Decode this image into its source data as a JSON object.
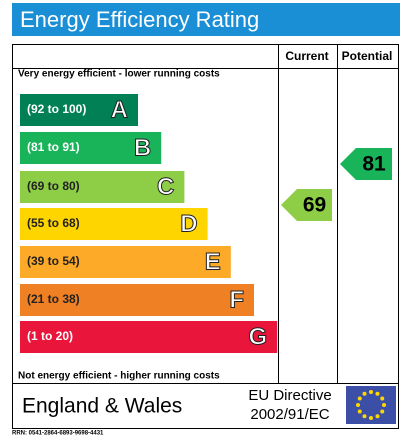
{
  "title": "Energy Efficiency Rating",
  "columns": [
    "Current",
    "Potential"
  ],
  "top_note": "Very energy efficient - lower running costs",
  "bottom_note": "Not energy efficient - higher running costs",
  "bands": [
    {
      "range": "(92 to 100)",
      "letter": "A"
    },
    {
      "range": "(81 to 91)",
      "letter": "B"
    },
    {
      "range": "(69 to 80)",
      "letter": "C"
    },
    {
      "range": "(55 to 68)",
      "letter": "D"
    },
    {
      "range": "(39 to 54)",
      "letter": "E"
    },
    {
      "range": "(21 to 38)",
      "letter": "F"
    },
    {
      "range": "(1 to 20)",
      "letter": "G"
    }
  ],
  "current": 69,
  "potential": 81,
  "region": "England & Wales",
  "directive": [
    "EU Directive",
    "2002/91/EC"
  ],
  "rrn": "RRN: 0541-2864-6893-9698-4431"
}
